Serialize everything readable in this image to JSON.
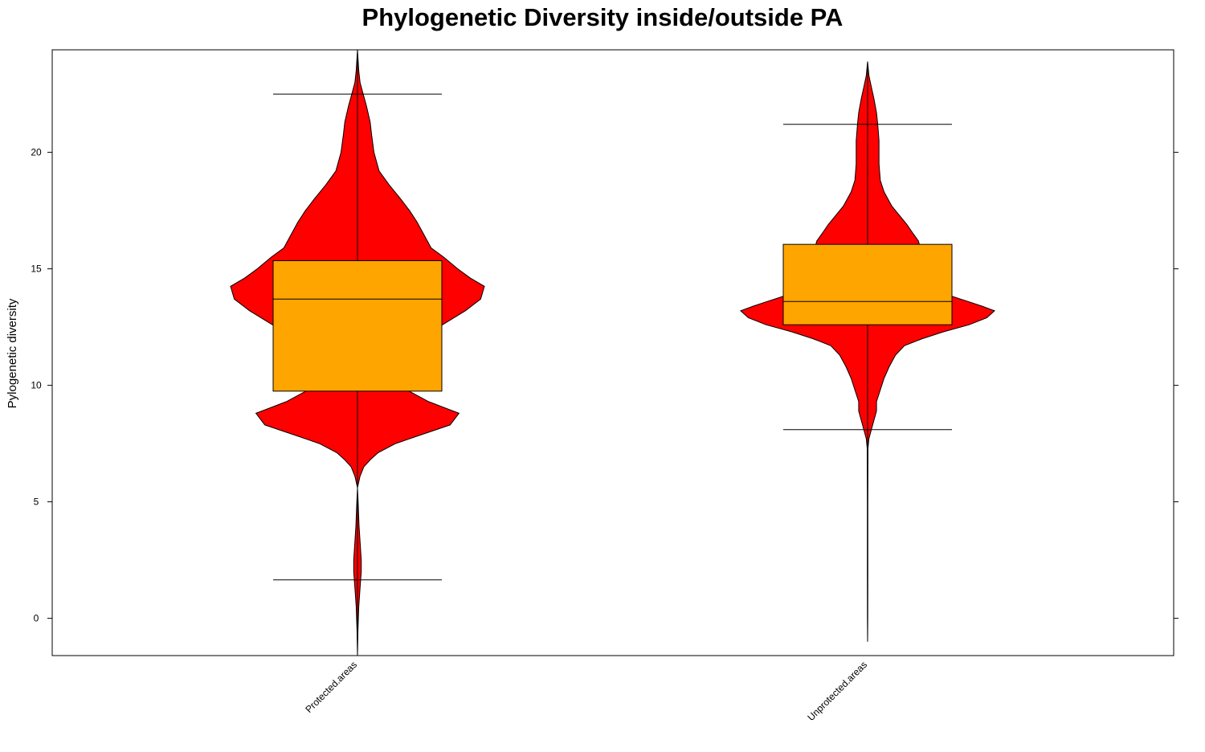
{
  "chart_data": {
    "type": "violin",
    "title": "Phylogenetic Diversity inside/outside PA",
    "xlabel": "",
    "ylabel": "Pylogenetic diversity",
    "ylim": [
      -1.6,
      24.4
    ],
    "yticks": [
      0,
      5,
      10,
      15,
      20
    ],
    "categories": [
      "Protected.areas",
      "Unprotected.areas"
    ],
    "colors": {
      "violin": "#ff0000",
      "box": "#ffa500",
      "line": "#000000"
    },
    "groups": [
      {
        "name": "Protected.areas",
        "min": -1.6,
        "max": 24.4,
        "whisker_low": 1.65,
        "q1": 9.75,
        "median": 13.7,
        "q3": 15.35,
        "whisker_high": 22.5,
        "density": [
          [
            24.4,
            0.0
          ],
          [
            23.5,
            0.01
          ],
          [
            23.0,
            0.02
          ],
          [
            22.6,
            0.04
          ],
          [
            22.0,
            0.07
          ],
          [
            21.3,
            0.1
          ],
          [
            20.8,
            0.11
          ],
          [
            20.0,
            0.13
          ],
          [
            19.2,
            0.17
          ],
          [
            18.6,
            0.25
          ],
          [
            18.0,
            0.34
          ],
          [
            17.5,
            0.41
          ],
          [
            17.0,
            0.47
          ],
          [
            16.5,
            0.52
          ],
          [
            15.9,
            0.58
          ],
          [
            15.5,
            0.68
          ],
          [
            15.0,
            0.79
          ],
          [
            14.6,
            0.89
          ],
          [
            14.25,
            1.0
          ],
          [
            13.7,
            0.97
          ],
          [
            13.2,
            0.85
          ],
          [
            12.7,
            0.7
          ],
          [
            12.2,
            0.55
          ],
          [
            11.6,
            0.42
          ],
          [
            11.0,
            0.32
          ],
          [
            10.5,
            0.3
          ],
          [
            9.8,
            0.39
          ],
          [
            9.3,
            0.56
          ],
          [
            8.8,
            0.8
          ],
          [
            8.3,
            0.73
          ],
          [
            7.8,
            0.46
          ],
          [
            7.5,
            0.3
          ],
          [
            7.1,
            0.16
          ],
          [
            6.8,
            0.1
          ],
          [
            6.5,
            0.05
          ],
          [
            6.1,
            0.02
          ],
          [
            5.6,
            0.0
          ],
          [
            5.0,
            0.005
          ],
          [
            4.0,
            0.012
          ],
          [
            3.3,
            0.02
          ],
          [
            2.5,
            0.03
          ],
          [
            2.0,
            0.03
          ],
          [
            1.3,
            0.02
          ],
          [
            0.5,
            0.01
          ],
          [
            -0.5,
            0.004
          ],
          [
            -1.6,
            0.0
          ]
        ]
      },
      {
        "name": "Unprotected.areas",
        "min": -1.0,
        "max": 23.9,
        "whisker_low": 8.1,
        "q1": 12.6,
        "median": 13.6,
        "q3": 16.05,
        "whisker_high": 21.2,
        "density": [
          [
            23.9,
            0.0
          ],
          [
            23.3,
            0.01
          ],
          [
            22.8,
            0.03
          ],
          [
            22.3,
            0.05
          ],
          [
            21.7,
            0.07
          ],
          [
            21.2,
            0.08
          ],
          [
            20.5,
            0.09
          ],
          [
            19.5,
            0.09
          ],
          [
            18.8,
            0.1
          ],
          [
            18.3,
            0.13
          ],
          [
            17.7,
            0.19
          ],
          [
            17.3,
            0.25
          ],
          [
            16.9,
            0.31
          ],
          [
            16.5,
            0.36
          ],
          [
            16.2,
            0.4
          ],
          [
            15.8,
            0.42
          ],
          [
            15.3,
            0.43
          ],
          [
            14.7,
            0.45
          ],
          [
            14.2,
            0.5
          ],
          [
            13.9,
            0.62
          ],
          [
            13.6,
            0.79
          ],
          [
            13.4,
            0.9
          ],
          [
            13.2,
            1.0
          ],
          [
            12.9,
            0.94
          ],
          [
            12.6,
            0.8
          ],
          [
            12.3,
            0.6
          ],
          [
            12.0,
            0.43
          ],
          [
            11.7,
            0.29
          ],
          [
            11.3,
            0.22
          ],
          [
            10.8,
            0.17
          ],
          [
            10.3,
            0.13
          ],
          [
            9.8,
            0.1
          ],
          [
            9.3,
            0.07
          ],
          [
            8.9,
            0.07
          ],
          [
            8.5,
            0.05
          ],
          [
            8.1,
            0.03
          ],
          [
            7.7,
            0.01
          ],
          [
            7.3,
            0.003
          ],
          [
            5.0,
            0.002
          ],
          [
            2.0,
            0.002
          ],
          [
            0.0,
            0.001
          ],
          [
            -1.0,
            0.0
          ]
        ]
      }
    ]
  }
}
